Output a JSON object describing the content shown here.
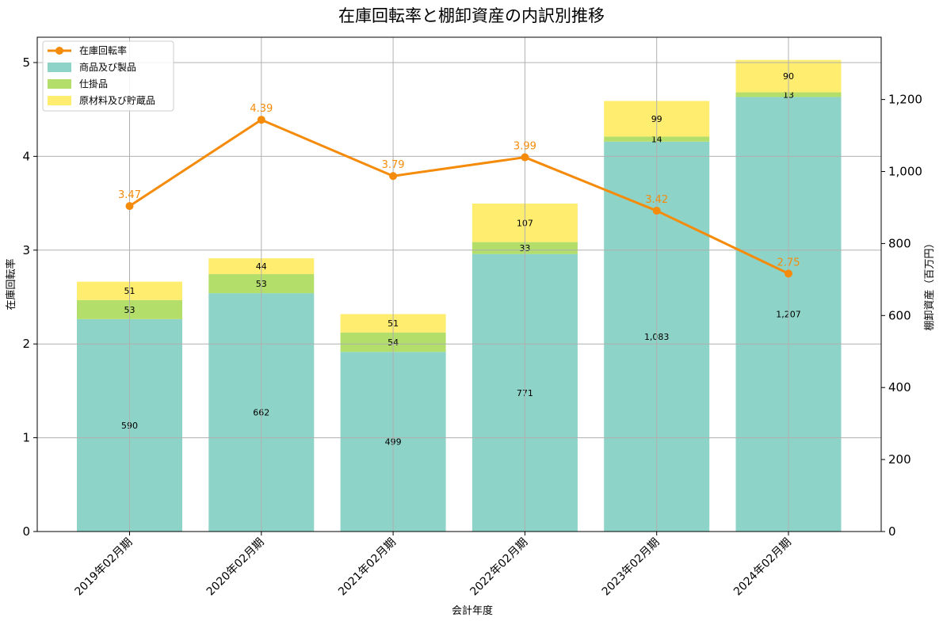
{
  "chart_data": {
    "type": "bar",
    "title": "在庫回転率と棚卸資産の内訳別推移",
    "xlabel": "会計年度",
    "ylabel_left": "在庫回転率",
    "ylabel_right": "棚卸資産（百万円）",
    "categories": [
      "2019年02月期",
      "2020年02月期",
      "2021年02月期",
      "2022年02月期",
      "2023年02月期",
      "2024年02月期"
    ],
    "stacked_series": [
      {
        "name": "商品及び製品",
        "values": [
          590,
          662,
          499,
          771,
          1083,
          1207
        ],
        "labels": [
          "590",
          "662",
          "499",
          "771",
          "1,083",
          "1,207"
        ],
        "color": "#8dd3c7"
      },
      {
        "name": "仕掛品",
        "values": [
          53,
          53,
          54,
          33,
          14,
          13
        ],
        "labels": [
          "53",
          "53",
          "54",
          "33",
          "14",
          "13"
        ],
        "color": "#b3de69"
      },
      {
        "name": "原材料及び貯蔵品",
        "values": [
          51,
          44,
          51,
          107,
          99,
          90
        ],
        "labels": [
          "51",
          "44",
          "51",
          "107",
          "99",
          "90"
        ],
        "color": "#ffed6f"
      }
    ],
    "line_series": {
      "name": "在庫回転率",
      "values": [
        3.47,
        4.39,
        3.79,
        3.99,
        3.42,
        2.75
      ],
      "labels": [
        "3.47",
        "4.39",
        "3.79",
        "3.99",
        "3.42",
        "2.75"
      ],
      "color": "#f58b0b"
    },
    "ylim_left": [
      0,
      5.27
    ],
    "ylim_right": [
      0,
      1373
    ],
    "left_ticks": [
      "0",
      "1",
      "2",
      "3",
      "4",
      "5"
    ],
    "left_tick_values": [
      0,
      1,
      2,
      3,
      4,
      5
    ],
    "right_ticks": [
      "0",
      "200",
      "400",
      "600",
      "800",
      "1,000",
      "1,200"
    ],
    "right_tick_values": [
      0,
      200,
      400,
      600,
      800,
      1000,
      1200
    ],
    "grid": true,
    "legend_position": "top-left"
  }
}
